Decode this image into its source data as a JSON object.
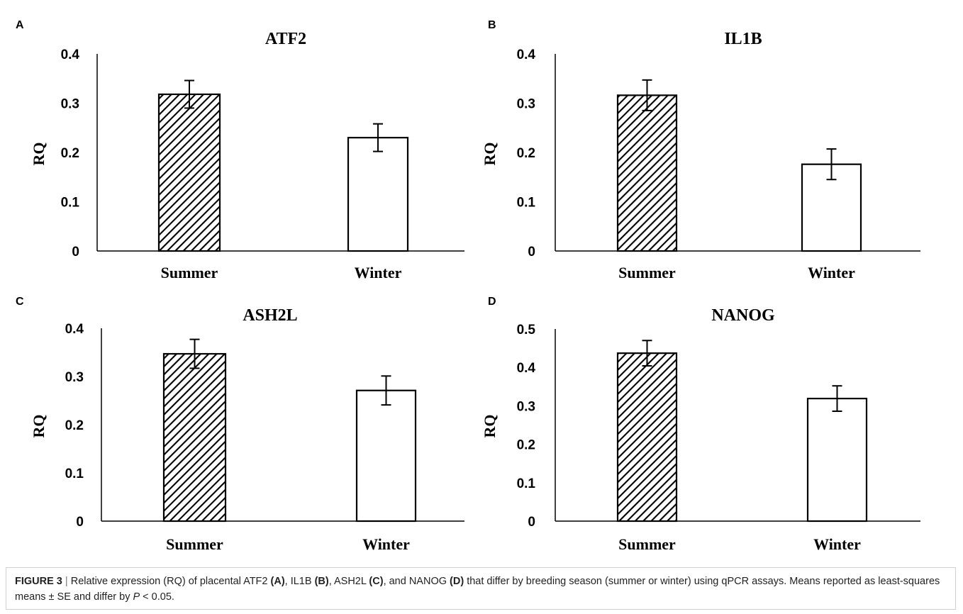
{
  "chart_data": [
    {
      "panel": "A",
      "type": "bar",
      "title": "ATF2",
      "ylabel": "RQ",
      "categories": [
        "Summer",
        "Winter"
      ],
      "values": [
        0.318,
        0.23
      ],
      "errors": [
        0.028,
        0.028
      ],
      "ylim": [
        0,
        0.4
      ],
      "yticks": [
        "0",
        "0.1",
        "0.2",
        "0.3",
        "0.4"
      ],
      "bar_fills": [
        "hatched",
        "white"
      ]
    },
    {
      "panel": "B",
      "type": "bar",
      "title": "IL1B",
      "ylabel": "RQ",
      "categories": [
        "Summer",
        "Winter"
      ],
      "values": [
        0.316,
        0.176
      ],
      "errors": [
        0.031,
        0.031
      ],
      "ylim": [
        0,
        0.4
      ],
      "yticks": [
        "0",
        "0.1",
        "0.2",
        "0.3",
        "0.4"
      ],
      "bar_fills": [
        "hatched",
        "white"
      ]
    },
    {
      "panel": "C",
      "type": "bar",
      "title": "ASH2L",
      "ylabel": "RQ",
      "categories": [
        "Summer",
        "Winter"
      ],
      "values": [
        0.347,
        0.271
      ],
      "errors": [
        0.03,
        0.03
      ],
      "ylim": [
        0,
        0.4
      ],
      "yticks": [
        "0",
        "0.1",
        "0.2",
        "0.3",
        "0.4"
      ],
      "bar_fills": [
        "hatched",
        "white"
      ]
    },
    {
      "panel": "D",
      "type": "bar",
      "title": "NANOG",
      "ylabel": "RQ",
      "categories": [
        "Summer",
        "Winter"
      ],
      "values": [
        0.437,
        0.319
      ],
      "errors": [
        0.033,
        0.033
      ],
      "ylim": [
        0,
        0.5
      ],
      "yticks": [
        "0",
        "0.1",
        "0.2",
        "0.3",
        "0.4",
        "0.5"
      ],
      "bar_fills": [
        "hatched",
        "white"
      ]
    }
  ],
  "caption": {
    "figure_label": "FIGURE 3",
    "separator": "|",
    "parts": [
      {
        "text": " Relative expression (RQ) of placental ATF2 ",
        "style": "normal"
      },
      {
        "text": "(A)",
        "style": "bold"
      },
      {
        "text": ", IL1B ",
        "style": "normal"
      },
      {
        "text": "(B)",
        "style": "bold"
      },
      {
        "text": ", ASH2L ",
        "style": "normal"
      },
      {
        "text": "(C)",
        "style": "bold"
      },
      {
        "text": ", and NANOG ",
        "style": "normal"
      },
      {
        "text": "(D)",
        "style": "bold"
      },
      {
        "text": " that differ by breeding season (summer or winter) using qPCR assays. Means reported as least-squares means ± SE and differ by ",
        "style": "normal"
      },
      {
        "text": "P",
        "style": "italic"
      },
      {
        "text": " < 0.05.",
        "style": "normal"
      }
    ]
  }
}
